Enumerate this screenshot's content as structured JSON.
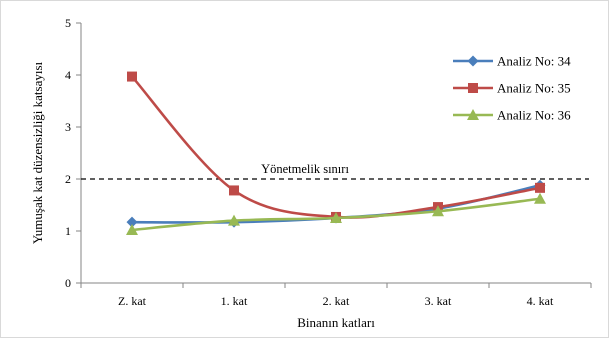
{
  "chart_data": {
    "type": "line",
    "title": "",
    "xlabel": "Binanın katları",
    "ylabel": "Yumuşak kat düzensizliği katsayısı",
    "categories": [
      "Z. kat",
      "1. kat",
      "2. kat",
      "3. kat",
      "4. kat"
    ],
    "ylim": [
      0,
      5
    ],
    "yticks": [
      0,
      1,
      2,
      3,
      4,
      5
    ],
    "grid": false,
    "legend_position": "right",
    "smooth": true,
    "series": [
      {
        "name": "Analiz No: 34",
        "values": [
          1.17,
          1.17,
          1.25,
          1.43,
          1.88
        ],
        "color": "#4a7ebb",
        "marker": "diamond"
      },
      {
        "name": "Analiz No: 35",
        "values": [
          3.97,
          1.78,
          1.27,
          1.46,
          1.83
        ],
        "color": "#be4b48",
        "marker": "square"
      },
      {
        "name": "Analiz No: 36",
        "values": [
          1.02,
          1.2,
          1.25,
          1.38,
          1.62
        ],
        "color": "#98b954",
        "marker": "triangle"
      }
    ],
    "reference_line": {
      "value": 2,
      "label": "Yönetmelik sınırı",
      "style": "dashed",
      "color": "#000000"
    }
  }
}
